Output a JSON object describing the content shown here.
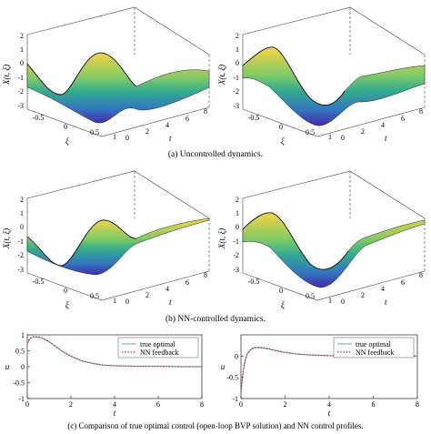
{
  "captions": {
    "a": "(a) Uncontrolled dynamics.",
    "b": "(b) NN-controlled dynamics.",
    "c": "(c) Comparison of true optimal control (open-loop BVP solution) and NN control profiles."
  },
  "surface_axes": {
    "zlabel": "X(t, ξ)",
    "xi_label": "ξ",
    "t_label": "t",
    "z_ticks": [
      "2",
      "1",
      "0",
      "-1",
      "-2",
      "-3"
    ],
    "xi_ticks": [
      "-0.5",
      "0",
      "0.5",
      "1"
    ],
    "t_ticks": [
      "0",
      "2",
      "4",
      "6",
      "8"
    ]
  },
  "colors": {
    "true_optimal": "#4f9bd9",
    "nn_feedback": "#c0392b",
    "surface_low": "#3b1fa5",
    "surface_mid": "#2aa889",
    "surface_high": "#f3d23a"
  },
  "chart_data": [
    {
      "type": "line",
      "xlabel": "t",
      "ylabel": "u",
      "xlim": [
        0,
        8
      ],
      "ylim": [
        -1,
        1
      ],
      "x_ticks": [
        "0",
        "2",
        "4",
        "6",
        "8"
      ],
      "y_ticks": [
        "1",
        "0.5",
        "0",
        "-0.5",
        "-1"
      ],
      "legend": "top-right",
      "series": [
        {
          "name": "true optimal",
          "x": [
            0,
            0.1,
            0.2,
            0.3,
            0.5,
            0.7,
            1,
            1.3,
            1.6,
            2,
            2.5,
            3,
            3.5,
            4,
            5,
            6,
            7,
            8
          ],
          "y": [
            0.72,
            0.86,
            0.91,
            0.93,
            0.93,
            0.89,
            0.78,
            0.63,
            0.48,
            0.32,
            0.18,
            0.1,
            0.05,
            0.03,
            0.01,
            0.01,
            0,
            0
          ]
        },
        {
          "name": "NN feedback",
          "x": [
            0,
            0.1,
            0.2,
            0.3,
            0.5,
            0.7,
            1,
            1.3,
            1.6,
            2,
            2.5,
            3,
            3.5,
            4,
            5,
            6,
            7,
            8
          ],
          "y": [
            0.74,
            0.87,
            0.92,
            0.94,
            0.94,
            0.9,
            0.79,
            0.64,
            0.49,
            0.33,
            0.19,
            0.1,
            0.05,
            0.03,
            0.01,
            0.01,
            0,
            0
          ]
        }
      ]
    },
    {
      "type": "line",
      "xlabel": "t",
      "ylabel": "u",
      "xlim": [
        0,
        8
      ],
      "ylim": [
        -1,
        0.5
      ],
      "x_ticks": [
        "0",
        "2",
        "4",
        "6",
        "8"
      ],
      "y_ticks": [
        "0",
        "-0.5",
        "-1"
      ],
      "legend": "top-right",
      "series": [
        {
          "name": "true optimal",
          "x": [
            0,
            0.05,
            0.1,
            0.2,
            0.3,
            0.5,
            0.7,
            1,
            1.3,
            1.6,
            2,
            2.5,
            3,
            3.5,
            4,
            5,
            6,
            7,
            8
          ],
          "y": [
            -0.88,
            -0.6,
            -0.36,
            -0.08,
            0.06,
            0.17,
            0.2,
            0.19,
            0.16,
            0.12,
            0.08,
            0.05,
            0.03,
            0.02,
            0.01,
            0,
            0,
            0,
            0
          ]
        },
        {
          "name": "NN feedback",
          "x": [
            0,
            0.05,
            0.1,
            0.2,
            0.3,
            0.5,
            0.7,
            1,
            1.3,
            1.6,
            2,
            2.5,
            3,
            3.5,
            4,
            5,
            6,
            7,
            8
          ],
          "y": [
            -0.86,
            -0.58,
            -0.35,
            -0.07,
            0.07,
            0.18,
            0.21,
            0.2,
            0.17,
            0.13,
            0.09,
            0.05,
            0.03,
            0.02,
            0.01,
            0,
            0,
            0,
            0
          ]
        }
      ]
    }
  ]
}
